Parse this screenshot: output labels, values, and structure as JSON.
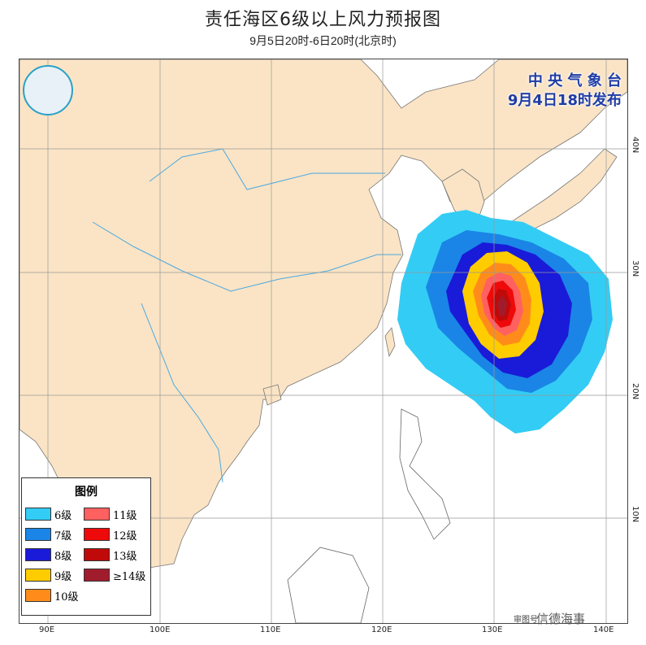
{
  "title": "责任海区6级以上风力预报图",
  "subtitle": "9月5日20时-6日20时(北京时)",
  "issuer": {
    "line1": "中 央 气 象 台",
    "line2": "9月4日18时发布"
  },
  "legend": {
    "title": "图例",
    "items": [
      {
        "label": "6级",
        "color": "#33ccf5"
      },
      {
        "label": "7级",
        "color": "#1a85e6"
      },
      {
        "label": "8级",
        "color": "#1a1ad9"
      },
      {
        "label": "9级",
        "color": "#ffcc00"
      },
      {
        "label": "10级",
        "color": "#ff8c1a"
      },
      {
        "label": "11级",
        "color": "#ff6060"
      },
      {
        "label": "12级",
        "color": "#ee0a0a"
      },
      {
        "label": "13级",
        "color": "#c00a0a"
      },
      {
        "label": "≥14级",
        "color": "#a01c2c"
      }
    ]
  },
  "axes": {
    "lon": [
      "90E",
      "100E",
      "110E",
      "120E",
      "130E",
      "140E"
    ],
    "lat": [
      "40N",
      "30N",
      "20N",
      "10N"
    ]
  },
  "footer": "审图号",
  "watermark": "信德海事",
  "colors": {
    "land": "#fae4c5",
    "sea": "#ffffff",
    "grid": "#999999"
  }
}
